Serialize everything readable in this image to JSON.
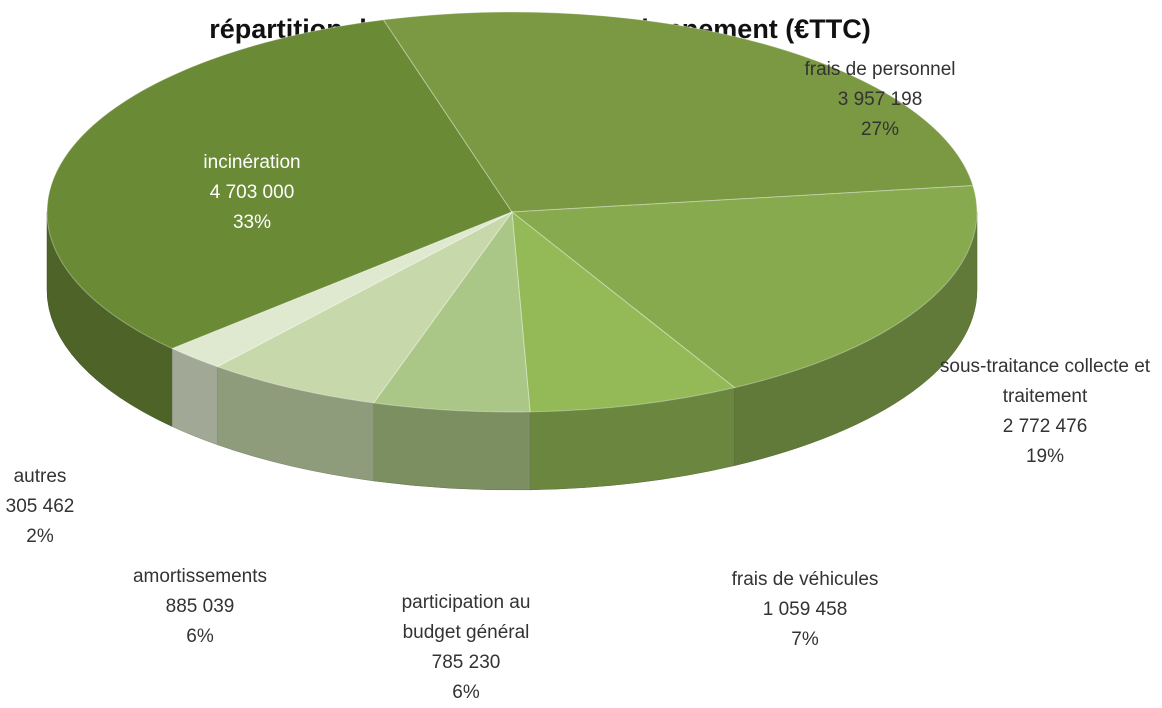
{
  "chart_data": {
    "type": "pie3d",
    "title": "répartition des dépenses de fonctionnement (€TTC)",
    "categories": [
      "incinération",
      "frais de personnel",
      "sous-traitance collecte et traitement",
      "frais de véhicules",
      "participation au budget général",
      "amortissements",
      "autres"
    ],
    "values": [
      4703000,
      3957198,
      2772476,
      1059458,
      785230,
      885039,
      305462
    ],
    "value_labels": [
      "4 703 000",
      "3 957 198",
      "2 772 476",
      "1 059 458",
      "785 230",
      "885 039",
      "305 462"
    ],
    "percent_labels": [
      "33%",
      "27%",
      "19%",
      "7%",
      "6%",
      "6%",
      "2%"
    ],
    "colors": [
      "#6b8a36",
      "#7b9843",
      "#87aa4f",
      "#94ba58",
      "#abc787",
      "#c7d8ab",
      "#dfe9cf"
    ]
  }
}
